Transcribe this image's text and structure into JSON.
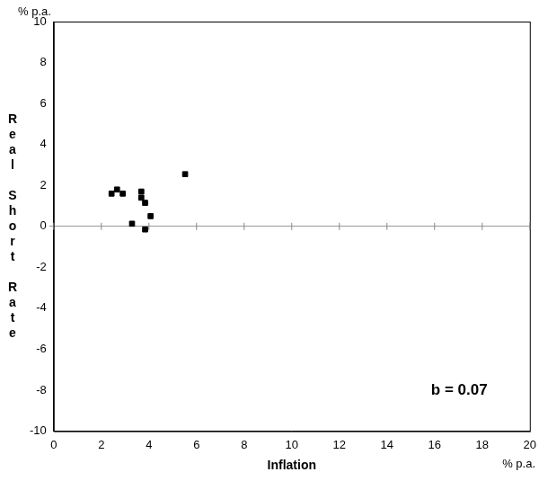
{
  "chart_data": {
    "type": "scatter",
    "x_label": "Inflation",
    "y_label": "Real Short Rate",
    "x_unit_label": "% p.a.",
    "y_unit_label": "% p.a.",
    "annotation": "b = 0.07",
    "x": [
      2.43,
      2.66,
      2.9,
      3.68,
      3.68,
      3.84,
      3.29,
      3.84,
      4.07,
      5.52
    ],
    "values": [
      1.6,
      1.8,
      1.6,
      1.7,
      1.4,
      1.15,
      0.13,
      -0.15,
      0.5,
      2.55
    ],
    "color": "#000000",
    "marker": "square",
    "xlim": [
      0,
      20
    ],
    "xticks": [
      0,
      2,
      4,
      6,
      8,
      10,
      12,
      14,
      16,
      18,
      20
    ],
    "ylim": [
      -10,
      10
    ],
    "yticks": [
      -10,
      -8,
      -6,
      -4,
      -2,
      0,
      2,
      4,
      6,
      8,
      10
    ],
    "grid": false
  }
}
